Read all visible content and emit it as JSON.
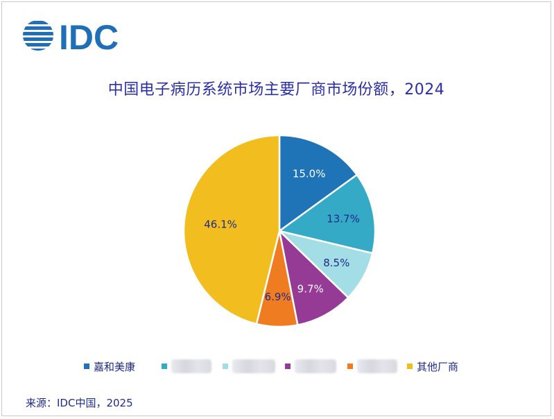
{
  "logo": {
    "text": "IDC",
    "color": "#1e6fb8"
  },
  "chart_data": {
    "type": "pie",
    "title": "中国电子病历系统市场主要厂商市场份额，2024",
    "slices": [
      {
        "label": "嘉和美康",
        "value": 15.0,
        "display": "15.0%",
        "color": "#1f73b7",
        "label_color": "#ffffff"
      },
      {
        "label": "",
        "value": 13.7,
        "display": "13.7%",
        "color": "#35aac7",
        "label_color": "#1f2a8c"
      },
      {
        "label": "",
        "value": 8.5,
        "display": "8.5%",
        "color": "#a3dde6",
        "label_color": "#1f2a8c"
      },
      {
        "label": "",
        "value": 9.7,
        "display": "9.7%",
        "color": "#953b96",
        "label_color": "#ffffff"
      },
      {
        "label": "",
        "value": 6.9,
        "display": "6.9%",
        "color": "#f07c22",
        "label_color": "#1f2a8c"
      },
      {
        "label": "其他厂商",
        "value": 46.1,
        "display": "46.1%",
        "color": "#f2bd1e",
        "label_color": "#1f2a8c"
      }
    ],
    "legend_position": "bottom",
    "start_angle_deg": 0,
    "direction": "clockwise"
  },
  "legend": [
    {
      "label": "嘉和美康",
      "color": "#1f73b7",
      "redacted": false
    },
    {
      "label": "",
      "color": "#35aac7",
      "redacted": true
    },
    {
      "label": "",
      "color": "#a3dde6",
      "redacted": true
    },
    {
      "label": "",
      "color": "#953b96",
      "redacted": true
    },
    {
      "label": "",
      "color": "#f07c22",
      "redacted": true
    },
    {
      "label": "其他厂商",
      "color": "#f2bd1e",
      "redacted": false
    }
  ],
  "source": "来源：IDC中国，2025"
}
